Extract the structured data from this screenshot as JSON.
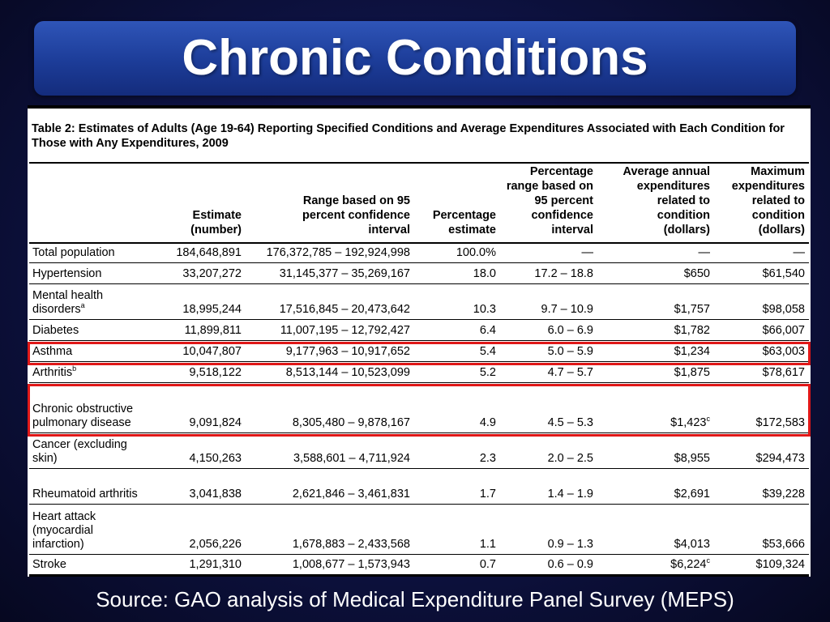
{
  "title": "Chronic Conditions",
  "table": {
    "caption": "Table 2: Estimates of Adults (Age 19-64) Reporting Specified Conditions and Average Expenditures Associated with Each Condition for Those with Any Expenditures, 2009",
    "columns": [
      "",
      "Estimate (number)",
      "Range based on 95 percent confidence interval",
      "Percentage estimate",
      "Percentage range based on 95 percent confidence interval",
      "Average annual expenditures related to condition (dollars)",
      "Maximum expenditures related to condition (dollars)"
    ],
    "rows": [
      {
        "condition": "Total population",
        "note": "",
        "estimate": "184,648,891",
        "range": "176,372,785 – 192,924,998",
        "pct": "100.0%",
        "pct_range": "—",
        "avg_exp": "—",
        "avg_note": "",
        "max_exp": "—",
        "highlighted": false
      },
      {
        "condition": "Hypertension",
        "note": "",
        "estimate": "33,207,272",
        "range": "31,145,377 – 35,269,167",
        "pct": "18.0",
        "pct_range": "17.2 – 18.8",
        "avg_exp": "$650",
        "avg_note": "",
        "max_exp": "$61,540",
        "highlighted": false
      },
      {
        "condition": "Mental health disorders",
        "note": "a",
        "estimate": "18,995,244",
        "range": "17,516,845 – 20,473,642",
        "pct": "10.3",
        "pct_range": "9.7 – 10.9",
        "avg_exp": "$1,757",
        "avg_note": "",
        "max_exp": "$98,058",
        "highlighted": false
      },
      {
        "condition": "Diabetes",
        "note": "",
        "estimate": "11,899,811",
        "range": "11,007,195 – 12,792,427",
        "pct": "6.4",
        "pct_range": "6.0 – 6.9",
        "avg_exp": "$1,782",
        "avg_note": "",
        "max_exp": "$66,007",
        "highlighted": false
      },
      {
        "condition": "Asthma",
        "note": "",
        "estimate": "10,047,807",
        "range": "9,177,963 – 10,917,652",
        "pct": "5.4",
        "pct_range": "5.0 – 5.9",
        "avg_exp": "$1,234",
        "avg_note": "",
        "max_exp": "$63,003",
        "highlighted": true
      },
      {
        "condition": "Arthritis",
        "note": "b",
        "estimate": "9,518,122",
        "range": "8,513,144 – 10,523,099",
        "pct": "5.2",
        "pct_range": "4.7 – 5.7",
        "avg_exp": "$1,875",
        "avg_note": "",
        "max_exp": "$78,617",
        "highlighted": false
      },
      {
        "condition": "Chronic obstructive pulmonary disease",
        "note": "",
        "estimate": "9,091,824",
        "range": "8,305,480 – 9,878,167",
        "pct": "4.9",
        "pct_range": "4.5 – 5.3",
        "avg_exp": "$1,423",
        "avg_note": "c",
        "max_exp": "$172,583",
        "highlighted": true
      },
      {
        "condition": "Cancer (excluding skin)",
        "note": "",
        "estimate": "4,150,263",
        "range": "3,588,601 – 4,711,924",
        "pct": "2.3",
        "pct_range": "2.0 – 2.5",
        "avg_exp": "$8,955",
        "avg_note": "",
        "max_exp": "$294,473",
        "highlighted": false
      },
      {
        "condition": "Rheumatoid arthritis",
        "note": "",
        "estimate": "3,041,838",
        "range": "2,621,846 – 3,461,831",
        "pct": "1.7",
        "pct_range": "1.4 – 1.9",
        "avg_exp": "$2,691",
        "avg_note": "",
        "max_exp": "$39,228",
        "highlighted": false
      },
      {
        "condition": "Heart attack (myocardial infarction)",
        "note": "",
        "estimate": "2,056,226",
        "range": "1,678,883 – 2,433,568",
        "pct": "1.1",
        "pct_range": "0.9 – 1.3",
        "avg_exp": "$4,013",
        "avg_note": "",
        "max_exp": "$53,666",
        "highlighted": false
      },
      {
        "condition": "Stroke",
        "note": "",
        "estimate": "1,291,310",
        "range": "1,008,677 – 1,573,943",
        "pct": "0.7",
        "pct_range": "0.6 – 0.9",
        "avg_exp": "$6,224",
        "avg_note": "c",
        "max_exp": "$109,324",
        "highlighted": false
      }
    ]
  },
  "source": "Source: GAO analysis of Medical Expenditure Panel Survey (MEPS)",
  "colors": {
    "highlight": "#e01818",
    "title_bar": "#1c3c98",
    "background": "#0f1448"
  }
}
